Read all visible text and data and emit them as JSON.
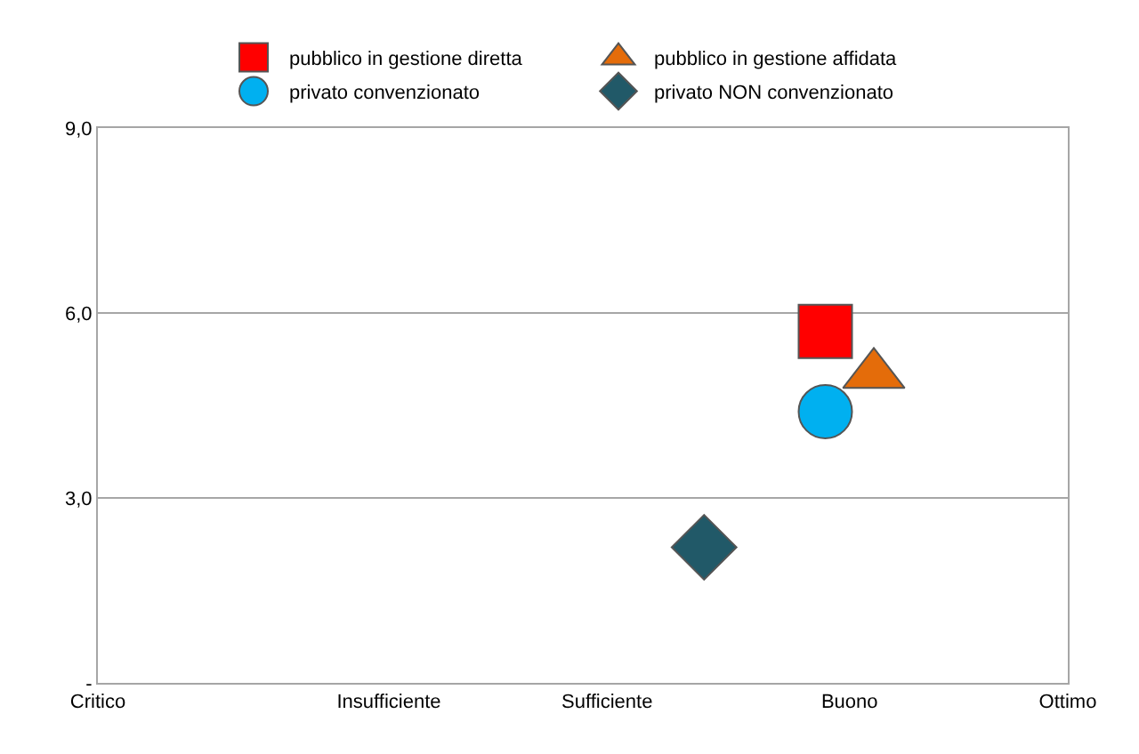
{
  "chart_data": {
    "type": "scatter",
    "categories": [
      "Critico",
      null,
      null,
      null,
      null,
      null,
      null,
      null,
      null,
      null,
      null,
      null,
      "Insufficiente",
      null,
      null,
      null,
      null,
      null,
      null,
      null,
      null,
      "Sufficiente",
      null,
      null,
      null,
      null,
      null,
      null,
      null,
      null,
      null,
      "Buono",
      null,
      null,
      null,
      null,
      null,
      null,
      null,
      null,
      "Ottimo"
    ],
    "ylim": [
      0,
      9
    ],
    "yticks": [
      {
        "value": 0,
        "label": "-"
      },
      {
        "value": 3,
        "label": "3,0"
      },
      {
        "value": 6,
        "label": "6,0"
      },
      {
        "value": 9,
        "label": "9,0"
      }
    ],
    "grid": "y",
    "legend": "top",
    "series": [
      {
        "name": "pubblico in gestione diretta",
        "color": "#ff0000",
        "marker": "square",
        "values": [
          null,
          null,
          null,
          null,
          null,
          null,
          null,
          null,
          null,
          null,
          null,
          null,
          null,
          null,
          null,
          null,
          null,
          null,
          null,
          null,
          null,
          null,
          null,
          null,
          null,
          null,
          null,
          null,
          null,
          null,
          5.7,
          null,
          null,
          null,
          null,
          null,
          null,
          null,
          null,
          null,
          null
        ]
      },
      {
        "name": "pubblico in gestione affidata",
        "color": "#e46c0a",
        "marker": "triangle",
        "values": [
          null,
          null,
          null,
          null,
          null,
          null,
          null,
          null,
          null,
          null,
          null,
          null,
          null,
          null,
          null,
          null,
          null,
          null,
          null,
          null,
          null,
          null,
          null,
          null,
          null,
          null,
          null,
          null,
          null,
          null,
          null,
          null,
          5.0,
          null,
          null,
          null,
          null,
          null,
          null,
          null,
          null
        ]
      },
      {
        "name": "privato convenzionato",
        "color": "#00b0f0",
        "marker": "circle",
        "values": [
          null,
          null,
          null,
          null,
          null,
          null,
          null,
          null,
          null,
          null,
          null,
          null,
          null,
          null,
          null,
          null,
          null,
          null,
          null,
          null,
          null,
          null,
          null,
          null,
          null,
          null,
          null,
          null,
          null,
          null,
          4.4,
          null,
          null,
          null,
          null,
          null,
          null,
          null,
          null,
          null,
          null
        ]
      },
      {
        "name": "privato NON convenzionato",
        "color": "#215968",
        "marker": "diamond",
        "values": [
          null,
          null,
          null,
          null,
          null,
          null,
          null,
          null,
          null,
          null,
          null,
          null,
          null,
          null,
          null,
          null,
          null,
          null,
          null,
          null,
          null,
          null,
          null,
          null,
          null,
          2.2,
          null,
          null,
          null,
          null,
          null,
          null,
          null,
          null,
          null,
          null,
          null,
          null,
          null,
          null,
          null
        ]
      }
    ]
  }
}
